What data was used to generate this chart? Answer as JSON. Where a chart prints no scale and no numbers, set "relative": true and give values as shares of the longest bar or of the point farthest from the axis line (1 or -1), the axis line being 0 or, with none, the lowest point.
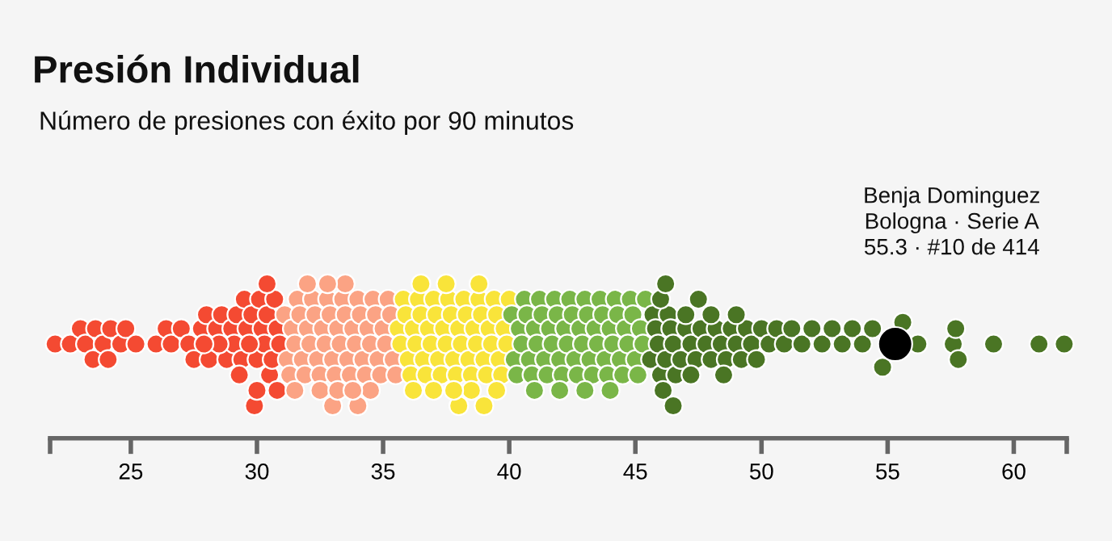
{
  "chart_data": {
    "type": "scatter",
    "title": "Presión Individual",
    "subtitle": "Número de presiones con éxito por 90 minutos",
    "xlim": [
      21.8,
      62.1
    ],
    "xticks": [
      {
        "value": 21.8,
        "label": null
      },
      25,
      30,
      35,
      40,
      45,
      50,
      55,
      60,
      {
        "value": 62.1,
        "label": null
      }
    ],
    "grid": false,
    "legend": false,
    "marker": "circle",
    "tick_labels": "x",
    "relative": true,
    "annotations": [
      "Benja Dominguez\nBologna · Serie A\n55.3 · #10 de 414"
    ],
    "series": [
      {
        "color": "#f44a32",
        "x": [
          22.0,
          22.6,
          23.0,
          23.2,
          23.5,
          23.6,
          23.9,
          24.1,
          24.2,
          24.6,
          24.8,
          25.2,
          26.0,
          26.4,
          26.6,
          27.0,
          27.3,
          27.5,
          27.8,
          28.0,
          28.1,
          28.4,
          28.6,
          28.8,
          29.0,
          29.1,
          29.2,
          29.4,
          29.5,
          29.6,
          29.8,
          29.9,
          30.0,
          30.1,
          30.2,
          30.3,
          30.4,
          30.5,
          30.6,
          30.7,
          30.8,
          30.9,
          29.3,
          29.7,
          30.0,
          30.4,
          30.8,
          28.5,
          27.9
        ],
        "values": [
          0.61,
          0.61,
          0.71,
          0.61,
          0.51,
          0.71,
          0.61,
          0.51,
          0.71,
          0.61,
          0.71,
          0.61,
          0.61,
          0.71,
          0.61,
          0.71,
          0.61,
          0.51,
          0.71,
          0.8,
          0.51,
          0.71,
          0.8,
          0.51,
          0.71,
          0.61,
          0.8,
          0.51,
          0.9,
          0.71,
          0.8,
          0.21,
          0.51,
          0.9,
          0.71,
          0.61,
          0.8,
          0.41,
          0.51,
          0.9,
          0.71,
          0.61,
          0.41,
          0.61,
          0.31,
          1,
          0.31,
          0.61,
          0.61
        ]
      },
      {
        "color": "#fba384",
        "x": [
          31.1,
          31.2,
          31.3,
          31.4,
          31.5,
          31.6,
          31.7,
          31.8,
          31.9,
          32.0,
          32.1,
          32.2,
          32.3,
          32.4,
          32.5,
          32.6,
          32.7,
          32.8,
          32.9,
          33.0,
          33.1,
          33.2,
          33.3,
          33.4,
          33.5,
          33.6,
          33.7,
          33.8,
          33.9,
          34.0,
          34.1,
          34.2,
          34.3,
          34.4,
          34.5,
          34.6,
          34.7,
          34.8,
          34.9,
          35.0,
          35.1,
          35.2,
          35.3,
          35.4,
          35.5,
          32.0,
          32.5,
          33.0,
          33.5,
          34.0,
          31.5,
          34.5,
          33.2,
          32.8,
          33.8
        ],
        "values": [
          0.8,
          0.51,
          0.41,
          0.71,
          0.61,
          0.9,
          0.8,
          0.51,
          0.41,
          0.71,
          0.61,
          0.9,
          0.8,
          0.51,
          0.41,
          0.71,
          0.61,
          0.9,
          0.8,
          0.51,
          0.41,
          0.71,
          0.61,
          0.9,
          0.8,
          0.51,
          0.41,
          0.71,
          0.61,
          0.9,
          0.8,
          0.51,
          0.41,
          0.71,
          0.61,
          0.9,
          0.8,
          0.51,
          0.41,
          0.71,
          0.61,
          0.9,
          0.8,
          0.51,
          0.41,
          1,
          0.31,
          0.21,
          1,
          0.21,
          0.31,
          0.31,
          0.31,
          1,
          0.31
        ]
      },
      {
        "color": "#f9e43a",
        "x": [
          35.6,
          35.7,
          35.8,
          35.9,
          36.0,
          36.1,
          36.2,
          36.3,
          36.4,
          36.5,
          36.6,
          36.7,
          36.8,
          36.9,
          37.0,
          37.1,
          37.2,
          37.3,
          37.4,
          37.5,
          37.6,
          37.7,
          37.8,
          37.9,
          38.0,
          38.1,
          38.2,
          38.3,
          38.4,
          38.5,
          38.6,
          38.7,
          38.8,
          38.9,
          39.0,
          39.1,
          39.2,
          39.3,
          39.4,
          39.5,
          39.6,
          39.7,
          39.8,
          39.9,
          40.0,
          36.5,
          37.0,
          37.5,
          38.0,
          38.5,
          39.0,
          39.5,
          36.2,
          37.8,
          38.8
        ],
        "values": [
          0.71,
          0.61,
          0.9,
          0.8,
          0.51,
          0.41,
          0.71,
          0.61,
          0.9,
          0.8,
          0.51,
          0.41,
          0.71,
          0.61,
          0.9,
          0.8,
          0.51,
          0.41,
          0.71,
          0.61,
          0.9,
          0.8,
          0.51,
          0.41,
          0.71,
          0.61,
          0.9,
          0.8,
          0.51,
          0.41,
          0.71,
          0.61,
          0.9,
          0.8,
          0.51,
          0.41,
          0.71,
          0.61,
          0.9,
          0.8,
          0.51,
          0.41,
          0.71,
          0.61,
          0.9,
          1,
          0.31,
          1,
          0.21,
          0.31,
          0.21,
          0.31,
          0.31,
          0.31,
          1
        ]
      },
      {
        "color": "#7ab648",
        "x": [
          40.1,
          40.2,
          40.3,
          40.4,
          40.5,
          40.6,
          40.7,
          40.8,
          40.9,
          41.0,
          41.1,
          41.2,
          41.3,
          41.4,
          41.5,
          41.6,
          41.7,
          41.8,
          41.9,
          42.0,
          42.1,
          42.2,
          42.3,
          42.4,
          42.5,
          42.6,
          42.7,
          42.8,
          42.9,
          43.0,
          43.1,
          43.2,
          43.3,
          43.4,
          43.5,
          43.6,
          43.7,
          43.8,
          43.9,
          44.0,
          44.1,
          44.2,
          44.3,
          44.4,
          44.5,
          44.6,
          44.7,
          44.8,
          44.9,
          45.0,
          45.1,
          45.2,
          45.3,
          45.4,
          41.0,
          42.0,
          43.0,
          44.0
        ],
        "values": [
          0.8,
          0.51,
          0.41,
          0.71,
          0.61,
          0.9,
          0.8,
          0.51,
          0.41,
          0.71,
          0.61,
          0.9,
          0.8,
          0.51,
          0.41,
          0.71,
          0.61,
          0.9,
          0.8,
          0.51,
          0.41,
          0.71,
          0.61,
          0.9,
          0.8,
          0.51,
          0.41,
          0.71,
          0.61,
          0.9,
          0.8,
          0.51,
          0.41,
          0.71,
          0.61,
          0.9,
          0.8,
          0.51,
          0.41,
          0.71,
          0.61,
          0.9,
          0.8,
          0.51,
          0.41,
          0.71,
          0.61,
          0.9,
          0.8,
          0.51,
          0.41,
          0.71,
          0.61,
          0.9,
          0.31,
          0.31,
          0.31,
          0.31
        ]
      },
      {
        "color": "#4a7524",
        "x": [
          45.6,
          45.7,
          45.8,
          45.9,
          46.0,
          46.1,
          46.2,
          46.3,
          46.4,
          46.5,
          46.6,
          46.8,
          47.0,
          47.2,
          47.4,
          47.6,
          47.8,
          48.0,
          48.2,
          48.4,
          48.6,
          48.8,
          49.0,
          49.2,
          49.4,
          49.6,
          49.8,
          50.0,
          50.3,
          50.6,
          50.9,
          51.2,
          51.6,
          52.0,
          52.4,
          52.8,
          53.2,
          53.6,
          54.0,
          54.4,
          54.8,
          55.6,
          56.2,
          57.6,
          57.7,
          57.8,
          59.2,
          61.0,
          62.0,
          46.0,
          46.5,
          47.0,
          47.5,
          48.0,
          48.5,
          49.0,
          46.2,
          47.2
        ],
        "values": [
          0.51,
          0.8,
          0.71,
          0.61,
          0.41,
          0.31,
          0.51,
          0.8,
          0.71,
          0.61,
          0.41,
          0.51,
          0.71,
          0.61,
          0.51,
          0.71,
          0.61,
          0.51,
          0.71,
          0.61,
          0.51,
          0.71,
          0.61,
          0.51,
          0.71,
          0.61,
          0.51,
          0.71,
          0.61,
          0.71,
          0.61,
          0.71,
          0.61,
          0.71,
          0.61,
          0.71,
          0.61,
          0.71,
          0.61,
          0.71,
          0.46,
          0.75,
          0.61,
          0.61,
          0.71,
          0.51,
          0.61,
          0.61,
          0.61,
          0.9,
          0.21,
          0.8,
          0.9,
          0.8,
          0.41,
          0.8,
          1,
          0.41
        ]
      },
      {
        "color": "#000000",
        "x": [
          55.3
        ],
        "values": [
          0.61
        ]
      }
    ]
  }
}
